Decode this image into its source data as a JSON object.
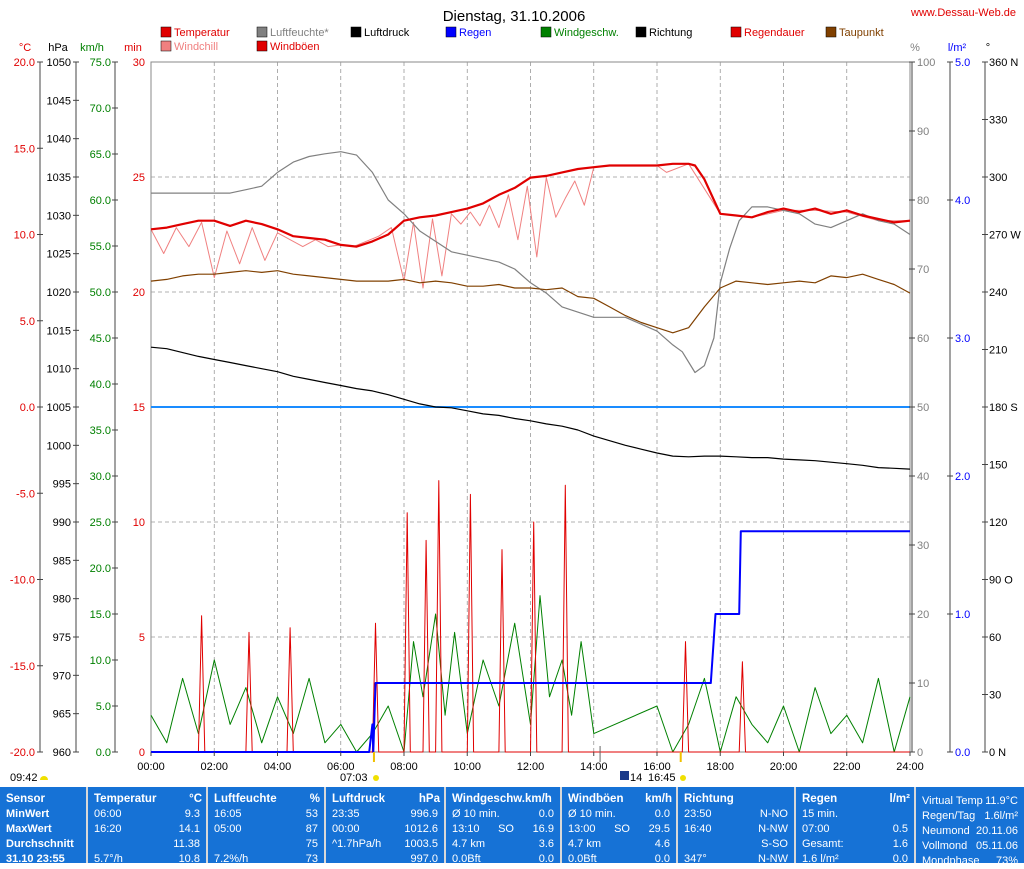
{
  "title": "Dienstag, 31.10.2006",
  "site": "www.Dessau-Web.de",
  "legend": [
    {
      "label": "Temperatur",
      "color": "#e00000"
    },
    {
      "label": "Windchill",
      "color": "#f08080"
    },
    {
      "label": "Luftfeuchte*",
      "color": "#808080"
    },
    {
      "label": "Windböen",
      "color": "#e00000"
    },
    {
      "label": "Luftdruck",
      "color": "#000000"
    },
    {
      "label": "Regen",
      "color": "#0000ff"
    },
    {
      "label": "Windgeschw.",
      "color": "#008000"
    },
    {
      "label": "Richtung",
      "color": "#000000"
    },
    {
      "label": "Regendauer",
      "color": "#e00000"
    },
    {
      "label": "Taupunkt",
      "color": "#804000"
    }
  ],
  "axis_units": {
    "temp": "°C",
    "pressure": "hPa",
    "wind": "km/h",
    "rain_duration": "min",
    "humidity": "%",
    "rain": "l/m²",
    "direction": "°"
  },
  "sun": {
    "rise": "07:03",
    "set": "16:45",
    "moon_rise": "09:42",
    "moon_set": "14",
    "rise_label": "07:03",
    "set_label": "16:45"
  },
  "chart_data": {
    "type": "line",
    "title": "Dienstag, 31.10.2006",
    "x_unit": "hours",
    "xlim": [
      0,
      24
    ],
    "x_ticks": [
      "00:00",
      "02:00",
      "04:00",
      "06:00",
      "08:00",
      "10:00",
      "12:00",
      "14:00",
      "16:00",
      "18:00",
      "20:00",
      "22:00",
      "24:00"
    ],
    "axes": {
      "temp": {
        "range": [
          -20,
          20
        ],
        "ticks": [
          "20.0",
          "15.0",
          "10.0",
          "5.0",
          "0.0",
          "-5.0",
          "-10.0",
          "-15.0",
          "-20.0"
        ]
      },
      "pressure": {
        "range": [
          960,
          1050
        ],
        "ticks": [
          "1050",
          "1045",
          "1040",
          "1035",
          "1030",
          "1025",
          "1020",
          "1015",
          "1010",
          "1005",
          "1000",
          "995",
          "990",
          "985",
          "980",
          "975",
          "970",
          "965",
          "960"
        ]
      },
      "wind": {
        "range": [
          0,
          75
        ],
        "ticks": [
          "75.0",
          "70.0",
          "65.0",
          "60.0",
          "55.0",
          "50.0",
          "45.0",
          "40.0",
          "35.0",
          "30.0",
          "25.0",
          "20.0",
          "15.0",
          "10.0",
          "5.0",
          "0.0"
        ]
      },
      "rain_duration": {
        "range": [
          0,
          30
        ],
        "ticks": [
          "30",
          "25",
          "20",
          "15",
          "10",
          "5",
          "0"
        ]
      },
      "humidity": {
        "range": [
          0,
          100
        ],
        "ticks": [
          "100",
          "90",
          "80",
          "70",
          "60",
          "50",
          "40",
          "30",
          "20",
          "10",
          "0"
        ]
      },
      "rain": {
        "range": [
          0,
          5
        ],
        "ticks": [
          "5.0",
          "4.0",
          "3.0",
          "2.0",
          "1.0",
          "0.0"
        ]
      },
      "direction": {
        "range": [
          0,
          360
        ],
        "ticks": [
          "360 N",
          "330",
          "300",
          "270 W",
          "240",
          "210",
          "180 S",
          "150",
          "120",
          "90 O",
          "60",
          "30",
          "0 N"
        ]
      }
    },
    "series": [
      {
        "name": "Temperatur",
        "axis": "temp",
        "color": "#e00000",
        "x": [
          0,
          0.5,
          1,
          1.5,
          2,
          2.5,
          3,
          3.5,
          4,
          4.5,
          5,
          5.5,
          6,
          6.5,
          7,
          7.5,
          8,
          8.5,
          9,
          9.5,
          10,
          10.5,
          11,
          11.5,
          12,
          12.5,
          13,
          13.5,
          14,
          14.5,
          15,
          15.5,
          16,
          16.5,
          17,
          17.2,
          17.5,
          17.8,
          18,
          18.5,
          19,
          19.5,
          20,
          20.5,
          21,
          21.5,
          22,
          22.5,
          23,
          23.5,
          24
        ],
        "y": [
          10.3,
          10.4,
          10.6,
          10.8,
          10.8,
          10.5,
          10.8,
          10.6,
          10.3,
          9.9,
          9.8,
          9.7,
          9.4,
          9.3,
          9.6,
          10.0,
          10.8,
          11.0,
          11.1,
          11.3,
          11.5,
          11.8,
          12.3,
          12.7,
          13.3,
          13.4,
          13.6,
          13.8,
          13.9,
          14.0,
          14.0,
          14.0,
          14.0,
          14.1,
          14.1,
          14.0,
          13.2,
          12.0,
          11.2,
          11.1,
          11.0,
          11.3,
          11.5,
          11.3,
          11.5,
          11.2,
          11.4,
          11.1,
          10.9,
          10.7,
          10.8
        ]
      },
      {
        "name": "Windchill",
        "axis": "temp",
        "color": "#f08080",
        "x": [
          0,
          0.4,
          0.8,
          1.2,
          1.6,
          2.0,
          2.4,
          2.8,
          3.2,
          3.6,
          4.0,
          4.4,
          4.8,
          5.2,
          5.6,
          6.0,
          6.4,
          6.8,
          7.2,
          7.6,
          8.0,
          8.3,
          8.6,
          8.9,
          9.2,
          9.5,
          9.8,
          10.1,
          10.4,
          10.7,
          11.0,
          11.3,
          11.6,
          11.9,
          12.2,
          12.5,
          12.8,
          13.1,
          13.4,
          13.7,
          14.0,
          14.5,
          15,
          16,
          16.3,
          17,
          18,
          19,
          20,
          21,
          22,
          23,
          24
        ],
        "y": [
          10.3,
          8.9,
          10.4,
          9.3,
          10.7,
          7.5,
          10.2,
          8.3,
          10.4,
          8.5,
          10.1,
          9.7,
          9.3,
          9.7,
          9.3,
          9.4,
          9.3,
          9.6,
          9.9,
          10.4,
          7.3,
          10.7,
          6.9,
          10.9,
          7.6,
          11.2,
          10.6,
          11.3,
          10.5,
          11.7,
          10.4,
          12.3,
          9.7,
          12.8,
          8.7,
          13.3,
          11.0,
          12.1,
          13.1,
          11.7,
          13.9,
          14.0,
          14.0,
          14.0,
          13.6,
          14.1,
          11.2,
          11.0,
          11.4,
          11.4,
          11.3,
          10.8,
          10.8
        ]
      },
      {
        "name": "Luftfeuchte*",
        "axis": "humidity",
        "color": "#808080",
        "x": [
          0,
          1,
          2,
          2.5,
          3,
          3.5,
          4,
          4.5,
          5,
          5.5,
          6,
          6.5,
          7,
          7.5,
          8,
          8.5,
          9,
          9.5,
          10,
          11,
          11.5,
          12,
          12.5,
          13,
          14,
          15,
          15.5,
          16,
          16.5,
          16.8,
          17.2,
          17.5,
          17.8,
          18,
          18.3,
          18.6,
          19,
          19.5,
          20,
          20.5,
          21,
          21.5,
          22,
          22.5,
          23,
          23.5,
          24
        ],
        "y": [
          81,
          81,
          81,
          81,
          81.5,
          82,
          84,
          85.5,
          86.3,
          86.7,
          87,
          86.5,
          84,
          80,
          78,
          75.5,
          74,
          72.5,
          72,
          71,
          70,
          68,
          66.5,
          64.5,
          63,
          63,
          62,
          61,
          59,
          58,
          55,
          56,
          60,
          68,
          73,
          77,
          79,
          79,
          78.5,
          78,
          76.5,
          76,
          77,
          78,
          77,
          76.5,
          75
        ]
      },
      {
        "name": "Luftdruck",
        "axis": "pressure",
        "color": "#000000",
        "x": [
          0,
          0.5,
          1,
          1.5,
          2,
          2.5,
          3,
          3.5,
          4,
          4.5,
          5,
          5.5,
          6,
          6.5,
          7,
          7.5,
          8,
          8.5,
          9,
          9.5,
          10,
          10.5,
          11,
          11.5,
          12,
          12.5,
          13,
          13.5,
          14,
          14.5,
          15,
          15.5,
          16,
          16.5,
          17,
          17.5,
          18,
          18.5,
          19,
          19.5,
          20,
          20.5,
          21,
          21.5,
          22,
          22.5,
          23,
          23.5,
          24
        ],
        "y": [
          1012.8,
          1012.6,
          1012.1,
          1011.6,
          1011.2,
          1010.8,
          1010.4,
          1010.0,
          1009.6,
          1009.0,
          1008.6,
          1008.2,
          1007.8,
          1007.4,
          1007.1,
          1006.6,
          1006.0,
          1005.4,
          1005.0,
          1004.9,
          1004.5,
          1004.1,
          1003.9,
          1003.5,
          1003.2,
          1002.8,
          1002.5,
          1002.0,
          1001.2,
          1000.6,
          1000.0,
          999.5,
          999.0,
          998.6,
          998.5,
          998.6,
          998.6,
          998.5,
          998.4,
          998.4,
          998.2,
          998.1,
          998.0,
          997.8,
          997.6,
          997.4,
          997.1,
          997.0,
          996.9
        ]
      },
      {
        "name": "Taupunkt",
        "axis": "temp",
        "color": "#804000",
        "x": [
          0,
          0.5,
          1,
          1.5,
          2,
          2.5,
          3,
          3.5,
          4,
          4.5,
          5,
          5.5,
          6,
          6.5,
          7,
          7.5,
          8,
          8.5,
          9,
          9.5,
          10,
          10.5,
          11,
          11.5,
          12,
          12.5,
          13,
          13.5,
          14,
          14.5,
          15,
          15.5,
          16,
          16.5,
          17,
          17.5,
          18,
          18.5,
          19,
          19.5,
          20,
          20.5,
          21,
          21.5,
          22,
          22.5,
          23,
          23.5,
          24
        ],
        "y": [
          7.3,
          7.4,
          7.6,
          7.7,
          7.7,
          7.8,
          7.9,
          7.8,
          7.9,
          7.7,
          7.6,
          7.5,
          7.4,
          7.3,
          7.3,
          7.3,
          7.4,
          7.2,
          7.3,
          7.2,
          7.0,
          7.0,
          7.1,
          6.9,
          6.9,
          6.8,
          6.9,
          6.4,
          6.3,
          5.8,
          5.3,
          4.9,
          4.6,
          4.3,
          4.6,
          5.8,
          6.9,
          7.3,
          7.2,
          7.1,
          7.2,
          7.3,
          7.2,
          7.6,
          7.5,
          7.7,
          7.4,
          7.1,
          6.6
        ]
      },
      {
        "name": "Regen",
        "axis": "rain",
        "color": "#0000ff",
        "x": [
          0,
          6.9,
          7.0,
          7.03,
          7.1,
          10,
          14,
          17.7,
          17.85,
          17.9,
          18.6,
          18.65,
          18.7,
          24
        ],
        "y": [
          0,
          0,
          0.2,
          0,
          0.5,
          0.5,
          0.5,
          0.5,
          1.0,
          1.0,
          1.0,
          1.6,
          1.6,
          1.6
        ]
      },
      {
        "name": "Windgeschw.",
        "axis": "wind",
        "color": "#008000",
        "x": [
          0,
          0.5,
          1,
          1.5,
          2,
          2.5,
          3,
          3.5,
          4,
          4.5,
          5,
          5.5,
          6,
          6.5,
          7,
          7.5,
          8,
          8.3,
          8.6,
          9,
          9.3,
          9.6,
          10,
          10.5,
          11,
          11.5,
          12,
          12.3,
          12.6,
          13,
          13.3,
          13.6,
          14,
          16,
          16.5,
          17,
          17.5,
          18,
          18.5,
          19,
          19.5,
          20,
          20.5,
          21,
          21.5,
          22,
          22.5,
          23,
          23.5,
          24
        ],
        "y": [
          4,
          1,
          8,
          2,
          10,
          3,
          7,
          1,
          6,
          2,
          8,
          1,
          3,
          0,
          2,
          5,
          0,
          12,
          6,
          15,
          4,
          13,
          2,
          10,
          5,
          14,
          3,
          17,
          6,
          10,
          4,
          12,
          2,
          5,
          0,
          3,
          8,
          0,
          6,
          3,
          1,
          5,
          0,
          7,
          2,
          4,
          1,
          8,
          0,
          6
        ]
      },
      {
        "name": "Windböen",
        "axis": "wind",
        "color": "#e00000",
        "x": [
          0,
          1.5,
          1.6,
          1.7,
          3.0,
          3.1,
          3.2,
          4.3,
          4.4,
          4.5,
          7.0,
          7.1,
          7.2,
          8.0,
          8.1,
          8.2,
          8.6,
          8.7,
          8.8,
          9.0,
          9.1,
          9.2,
          10.0,
          10.1,
          10.2,
          11.0,
          11.1,
          11.2,
          12.0,
          12.1,
          12.2,
          13.0,
          13.1,
          13.2,
          14.0,
          16.8,
          16.9,
          17.0,
          18.6,
          18.7,
          18.8,
          24
        ],
        "y": [
          0,
          0,
          14.8,
          0,
          0,
          13.0,
          0,
          0,
          13.5,
          0,
          0,
          14.0,
          0,
          0,
          26.0,
          0,
          0,
          23.0,
          0,
          0,
          29.5,
          0,
          0,
          28.0,
          0,
          0,
          22.0,
          0,
          0,
          25.0,
          0,
          0,
          29.0,
          0,
          0,
          0,
          12.0,
          0,
          0,
          9.8,
          0,
          0
        ]
      }
    ]
  },
  "panels": [
    {
      "name": "sensor",
      "header": "Sensor",
      "unit": "",
      "rows": [
        {
          "label": "MinWert",
          "a": "",
          "b": ""
        },
        {
          "label": "MaxWert",
          "a": "",
          "b": ""
        },
        {
          "label": "Durchschnitt",
          "a": "",
          "b": ""
        },
        {
          "label": "31.10 23:55",
          "a": "",
          "b": ""
        }
      ]
    },
    {
      "name": "temperatur",
      "header": "Temperatur",
      "unit": "°C",
      "rows": [
        {
          "label": "06:00",
          "a": "",
          "b": "9.3"
        },
        {
          "label": "16:20",
          "a": "",
          "b": "14.1"
        },
        {
          "label": "",
          "a": "",
          "b": "11.38"
        },
        {
          "label": "5.7°/h",
          "a": "",
          "b": "10.8"
        }
      ]
    },
    {
      "name": "luftfeuchte",
      "header": "Luftfeuchte",
      "unit": "%",
      "rows": [
        {
          "label": "16:05",
          "a": "",
          "b": "53"
        },
        {
          "label": "05:00",
          "a": "",
          "b": "87"
        },
        {
          "label": "",
          "a": "",
          "b": "75"
        },
        {
          "label": "7.2%/h",
          "a": "",
          "b": "73"
        }
      ]
    },
    {
      "name": "luftdruck",
      "header": "Luftdruck",
      "unit": "hPa",
      "rows": [
        {
          "label": "23:35",
          "a": "",
          "b": "996.9"
        },
        {
          "label": "00:00",
          "a": "",
          "b": "1012.6"
        },
        {
          "label": "^1.7hPa/h",
          "a": "",
          "b": "1003.5"
        },
        {
          "label": "",
          "a": "",
          "b": "997.0"
        }
      ]
    },
    {
      "name": "windgeschw",
      "header": "Windgeschw.km/h",
      "unit": "",
      "rows": [
        {
          "label": "Ø 10 min.",
          "a": "",
          "b": "0.0"
        },
        {
          "label": "13:10",
          "a": "SO",
          "b": "16.9"
        },
        {
          "label": "4.7 km",
          "a": "",
          "b": "3.6"
        },
        {
          "label": "0.0Bft",
          "a": "",
          "b": "0.0"
        }
      ]
    },
    {
      "name": "windboeen",
      "header": "Windböen",
      "unit": "km/h",
      "rows": [
        {
          "label": "Ø 10 min.",
          "a": "",
          "b": "0.0"
        },
        {
          "label": "13:00",
          "a": "SO",
          "b": "29.5"
        },
        {
          "label": "4.7 km",
          "a": "",
          "b": "4.6"
        },
        {
          "label": "0.0Bft",
          "a": "",
          "b": "0.0"
        }
      ]
    },
    {
      "name": "richtung",
      "header": "Richtung",
      "unit": "",
      "rows": [
        {
          "label": "23:50",
          "a": "",
          "b": "N-NO"
        },
        {
          "label": "16:40",
          "a": "",
          "b": "N-NW"
        },
        {
          "label": "",
          "a": "",
          "b": "S-SO"
        },
        {
          "label": "347°",
          "a": "",
          "b": "N-NW"
        }
      ]
    },
    {
      "name": "regen",
      "header": "Regen",
      "unit": "l/m²",
      "rows": [
        {
          "label": "15 min.",
          "a": "",
          "b": ""
        },
        {
          "label": "07:00",
          "a": "",
          "b": "0.5"
        },
        {
          "label": "Gesamt:",
          "a": "",
          "b": "1.6"
        },
        {
          "label": "1.6 l/m²",
          "a": "",
          "b": "0.0"
        }
      ]
    },
    {
      "name": "info",
      "header": "",
      "unit": "",
      "rows": [
        {
          "label": "Virtual Temp",
          "a": "",
          "b": "11.9°C"
        },
        {
          "label": "Regen/Tag",
          "a": "",
          "b": "1.6l/m²"
        },
        {
          "label": "Neumond",
          "a": "",
          "b": "20.11.06"
        },
        {
          "label": "Vollmond",
          "a": "",
          "b": "05.11.06"
        },
        {
          "label": "Mondphase",
          "a": "",
          "b": "73%"
        }
      ]
    }
  ]
}
